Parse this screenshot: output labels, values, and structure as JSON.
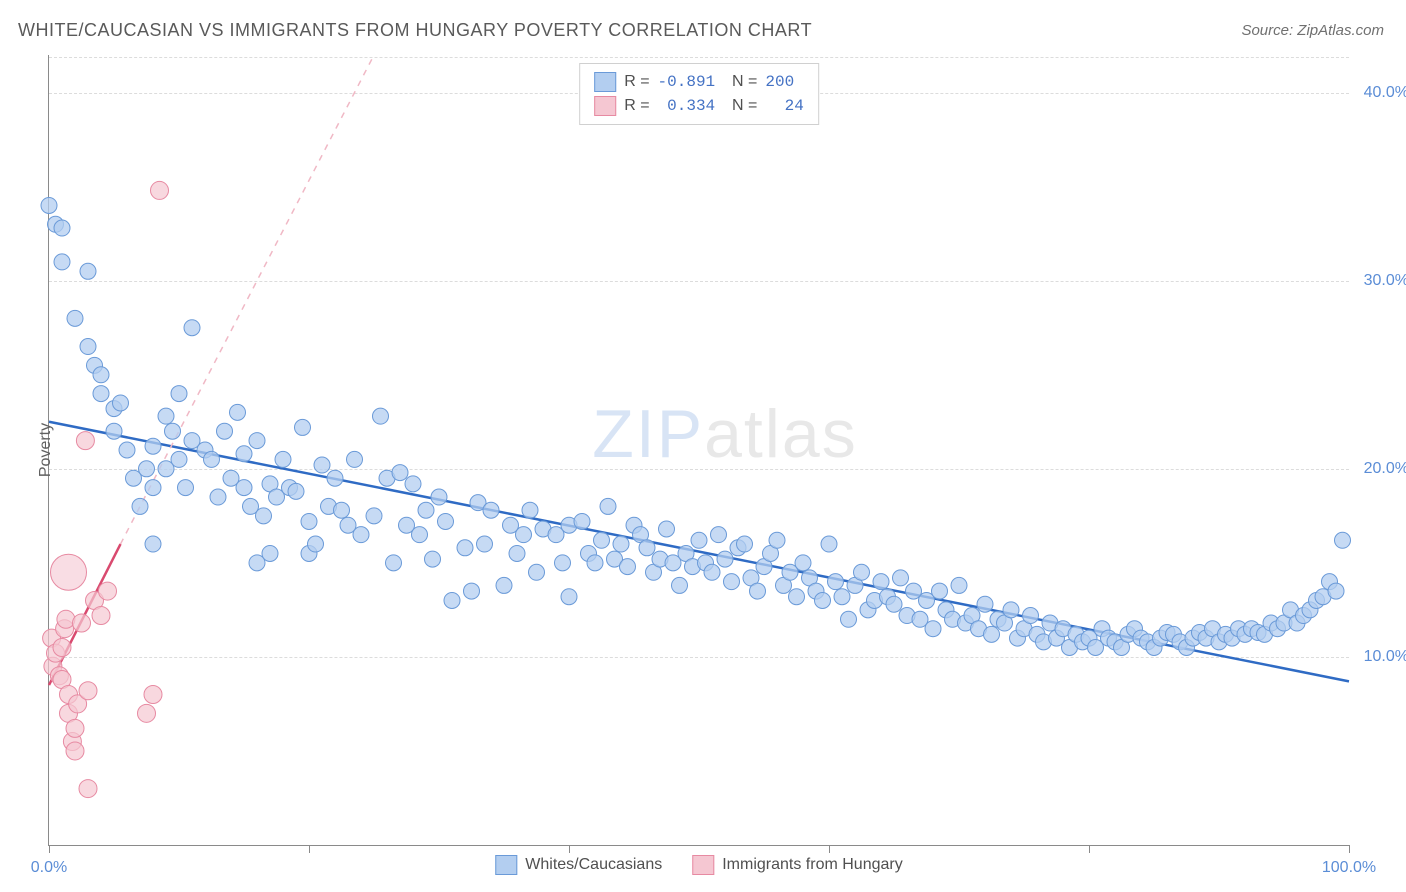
{
  "title": "WHITE/CAUCASIAN VS IMMIGRANTS FROM HUNGARY POVERTY CORRELATION CHART",
  "source": "Source: ZipAtlas.com",
  "watermark_zip": "ZIP",
  "watermark_atlas": "atlas",
  "chart": {
    "type": "scatter",
    "xlim": [
      0,
      100
    ],
    "ylim": [
      0,
      42
    ],
    "xticks": [
      0,
      20,
      40,
      60,
      80,
      100
    ],
    "xlabels": {
      "0": "0.0%",
      "100": "100.0%"
    },
    "yticks": [
      10,
      20,
      30,
      40
    ],
    "ylabels": {
      "10": "10.0%",
      "20": "20.0%",
      "30": "30.0%",
      "40": "40.0%"
    },
    "ylabel": "Poverty",
    "background_color": "#ffffff",
    "grid_color": "#dcdcdc",
    "axis_color": "#8a8a8a",
    "tick_label_color": "#5b8dd6",
    "series": [
      {
        "name": "Whites/Caucasians",
        "marker_fill": "#b3cef0",
        "marker_stroke": "#6a9ad8",
        "marker_radius": 8,
        "marker_opacity": 0.75,
        "trend_line_color": "#2f6bc4",
        "trend_line_width": 2.5,
        "trend_dashed_color": "#a8c4e8",
        "R": "-0.891",
        "N": "200",
        "trend": {
          "x1": 0,
          "y1": 22.5,
          "x2": 100,
          "y2": 8.7
        },
        "points": [
          [
            0,
            34
          ],
          [
            0.5,
            33
          ],
          [
            1,
            32.8
          ],
          [
            1,
            31
          ],
          [
            3,
            30.5
          ],
          [
            2,
            28
          ],
          [
            3,
            26.5
          ],
          [
            3.5,
            25.5
          ],
          [
            4,
            25
          ],
          [
            4,
            24
          ],
          [
            5,
            23.2
          ],
          [
            5,
            22
          ],
          [
            5.5,
            23.5
          ],
          [
            6,
            21
          ],
          [
            6.5,
            19.5
          ],
          [
            7,
            18
          ],
          [
            7.5,
            20
          ],
          [
            8,
            21.2
          ],
          [
            8,
            19
          ],
          [
            8,
            16
          ],
          [
            9,
            22.8
          ],
          [
            9,
            20
          ],
          [
            9.5,
            22
          ],
          [
            10,
            24
          ],
          [
            10,
            20.5
          ],
          [
            10.5,
            19
          ],
          [
            11,
            27.5
          ],
          [
            11,
            21.5
          ],
          [
            12,
            21
          ],
          [
            12.5,
            20.5
          ],
          [
            13,
            18.5
          ],
          [
            13.5,
            22
          ],
          [
            14,
            19.5
          ],
          [
            14.5,
            23
          ],
          [
            15,
            20.8
          ],
          [
            15,
            19
          ],
          [
            15.5,
            18
          ],
          [
            16,
            21.5
          ],
          [
            16,
            15
          ],
          [
            16.5,
            17.5
          ],
          [
            17,
            19.2
          ],
          [
            17,
            15.5
          ],
          [
            17.5,
            18.5
          ],
          [
            18,
            20.5
          ],
          [
            18.5,
            19
          ],
          [
            19,
            18.8
          ],
          [
            19.5,
            22.2
          ],
          [
            20,
            17.2
          ],
          [
            20,
            15.5
          ],
          [
            20.5,
            16
          ],
          [
            21,
            20.2
          ],
          [
            21.5,
            18
          ],
          [
            22,
            19.5
          ],
          [
            22.5,
            17.8
          ],
          [
            23,
            17
          ],
          [
            23.5,
            20.5
          ],
          [
            24,
            16.5
          ],
          [
            25,
            17.5
          ],
          [
            25.5,
            22.8
          ],
          [
            26,
            19.5
          ],
          [
            26.5,
            15
          ],
          [
            27,
            19.8
          ],
          [
            27.5,
            17
          ],
          [
            28,
            19.2
          ],
          [
            28.5,
            16.5
          ],
          [
            29,
            17.8
          ],
          [
            29.5,
            15.2
          ],
          [
            30,
            18.5
          ],
          [
            30.5,
            17.2
          ],
          [
            31,
            13
          ],
          [
            32,
            15.8
          ],
          [
            32.5,
            13.5
          ],
          [
            33,
            18.2
          ],
          [
            33.5,
            16
          ],
          [
            34,
            17.8
          ],
          [
            35,
            13.8
          ],
          [
            35.5,
            17
          ],
          [
            36,
            15.5
          ],
          [
            36.5,
            16.5
          ],
          [
            37,
            17.8
          ],
          [
            37.5,
            14.5
          ],
          [
            38,
            16.8
          ],
          [
            39,
            16.5
          ],
          [
            39.5,
            15
          ],
          [
            40,
            17
          ],
          [
            40,
            13.2
          ],
          [
            41,
            17.2
          ],
          [
            41.5,
            15.5
          ],
          [
            42,
            15
          ],
          [
            42.5,
            16.2
          ],
          [
            43,
            18
          ],
          [
            43.5,
            15.2
          ],
          [
            44,
            16
          ],
          [
            44.5,
            14.8
          ],
          [
            45,
            17
          ],
          [
            45.5,
            16.5
          ],
          [
            46,
            15.8
          ],
          [
            46.5,
            14.5
          ],
          [
            47,
            15.2
          ],
          [
            47.5,
            16.8
          ],
          [
            48,
            15
          ],
          [
            48.5,
            13.8
          ],
          [
            49,
            15.5
          ],
          [
            49.5,
            14.8
          ],
          [
            50,
            16.2
          ],
          [
            50.5,
            15
          ],
          [
            51,
            14.5
          ],
          [
            51.5,
            16.5
          ],
          [
            52,
            15.2
          ],
          [
            52.5,
            14
          ],
          [
            53,
            15.8
          ],
          [
            53.5,
            16
          ],
          [
            54,
            14.2
          ],
          [
            54.5,
            13.5
          ],
          [
            55,
            14.8
          ],
          [
            55.5,
            15.5
          ],
          [
            56,
            16.2
          ],
          [
            56.5,
            13.8
          ],
          [
            57,
            14.5
          ],
          [
            57.5,
            13.2
          ],
          [
            58,
            15
          ],
          [
            58.5,
            14.2
          ],
          [
            59,
            13.5
          ],
          [
            59.5,
            13
          ],
          [
            60,
            16
          ],
          [
            60.5,
            14
          ],
          [
            61,
            13.2
          ],
          [
            61.5,
            12
          ],
          [
            62,
            13.8
          ],
          [
            62.5,
            14.5
          ],
          [
            63,
            12.5
          ],
          [
            63.5,
            13
          ],
          [
            64,
            14
          ],
          [
            64.5,
            13.2
          ],
          [
            65,
            12.8
          ],
          [
            65.5,
            14.2
          ],
          [
            66,
            12.2
          ],
          [
            66.5,
            13.5
          ],
          [
            67,
            12
          ],
          [
            67.5,
            13
          ],
          [
            68,
            11.5
          ],
          [
            68.5,
            13.5
          ],
          [
            69,
            12.5
          ],
          [
            69.5,
            12
          ],
          [
            70,
            13.8
          ],
          [
            70.5,
            11.8
          ],
          [
            71,
            12.2
          ],
          [
            71.5,
            11.5
          ],
          [
            72,
            12.8
          ],
          [
            72.5,
            11.2
          ],
          [
            73,
            12
          ],
          [
            73.5,
            11.8
          ],
          [
            74,
            12.5
          ],
          [
            74.5,
            11
          ],
          [
            75,
            11.5
          ],
          [
            75.5,
            12.2
          ],
          [
            76,
            11.2
          ],
          [
            76.5,
            10.8
          ],
          [
            77,
            11.8
          ],
          [
            77.5,
            11
          ],
          [
            78,
            11.5
          ],
          [
            78.5,
            10.5
          ],
          [
            79,
            11.2
          ],
          [
            79.5,
            10.8
          ],
          [
            80,
            11
          ],
          [
            80.5,
            10.5
          ],
          [
            81,
            11.5
          ],
          [
            81.5,
            11
          ],
          [
            82,
            10.8
          ],
          [
            82.5,
            10.5
          ],
          [
            83,
            11.2
          ],
          [
            83.5,
            11.5
          ],
          [
            84,
            11
          ],
          [
            84.5,
            10.8
          ],
          [
            85,
            10.5
          ],
          [
            85.5,
            11
          ],
          [
            86,
            11.3
          ],
          [
            86.5,
            11.2
          ],
          [
            87,
            10.8
          ],
          [
            87.5,
            10.5
          ],
          [
            88,
            11
          ],
          [
            88.5,
            11.3
          ],
          [
            89,
            11
          ],
          [
            89.5,
            11.5
          ],
          [
            90,
            10.8
          ],
          [
            90.5,
            11.2
          ],
          [
            91,
            11
          ],
          [
            91.5,
            11.5
          ],
          [
            92,
            11.2
          ],
          [
            92.5,
            11.5
          ],
          [
            93,
            11.3
          ],
          [
            93.5,
            11.2
          ],
          [
            94,
            11.8
          ],
          [
            94.5,
            11.5
          ],
          [
            95,
            11.8
          ],
          [
            95.5,
            12.5
          ],
          [
            96,
            11.8
          ],
          [
            96.5,
            12.2
          ],
          [
            97,
            12.5
          ],
          [
            97.5,
            13
          ],
          [
            98,
            13.2
          ],
          [
            98.5,
            14
          ],
          [
            99,
            13.5
          ],
          [
            99.5,
            16.2
          ]
        ]
      },
      {
        "name": "Immigrants from Hungary",
        "marker_fill": "#f5c7d2",
        "marker_stroke": "#e78aa2",
        "marker_radius": 9,
        "marker_opacity": 0.7,
        "trend_line_color": "#d94a6f",
        "trend_line_width": 2.5,
        "trend_dashed_color": "#f0b8c5",
        "R": "0.334",
        "N": "24",
        "trend_solid": {
          "x1": 0,
          "y1": 8.5,
          "x2": 5.5,
          "y2": 16
        },
        "trend_dashed": {
          "x1": 5.5,
          "y1": 16,
          "x2": 25,
          "y2": 42
        },
        "points": [
          [
            0.2,
            11
          ],
          [
            0.3,
            9.5
          ],
          [
            0.5,
            10.2
          ],
          [
            0.8,
            9
          ],
          [
            1,
            8.8
          ],
          [
            1,
            10.5
          ],
          [
            1.2,
            11.5
          ],
          [
            1.3,
            12
          ],
          [
            1.5,
            8
          ],
          [
            1.5,
            7
          ],
          [
            1.8,
            5.5
          ],
          [
            2,
            6.2
          ],
          [
            2,
            5
          ],
          [
            2.2,
            7.5
          ],
          [
            2.5,
            11.8
          ],
          [
            2.8,
            21.5
          ],
          [
            3,
            8.2
          ],
          [
            3.5,
            13
          ],
          [
            4,
            12.2
          ],
          [
            4.5,
            13.5
          ],
          [
            7.5,
            7
          ],
          [
            8,
            8
          ],
          [
            8.5,
            34.8
          ],
          [
            3,
            3
          ]
        ],
        "large_points": [
          [
            1.5,
            14.5
          ]
        ]
      }
    ],
    "legend_top": {
      "border_color": "#d0d0d0",
      "bg_color": "#ffffff"
    },
    "legend_bottom": [
      {
        "swatch_fill": "#b3cef0",
        "swatch_stroke": "#6a9ad8",
        "label": "Whites/Caucasians"
      },
      {
        "swatch_fill": "#f5c7d2",
        "swatch_stroke": "#e78aa2",
        "label": "Immigrants from Hungary"
      }
    ]
  }
}
